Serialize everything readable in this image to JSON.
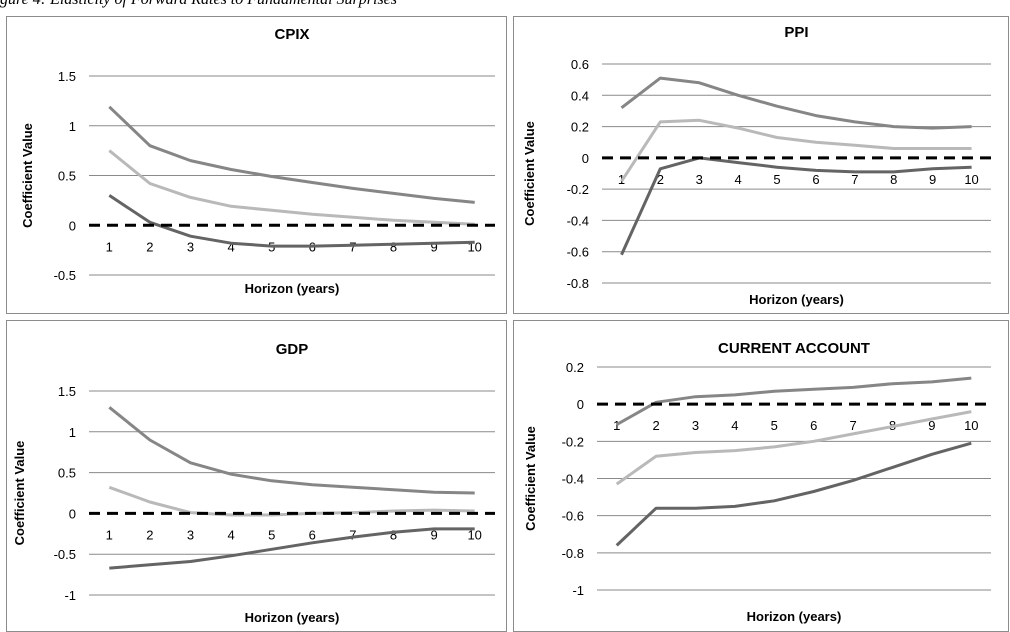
{
  "figure_caption": "gure 4: Elasticity of Forward Rates to Fundamental Surprises",
  "colors": {
    "upper": "#868686",
    "mid": "#b9b9b9",
    "lower": "#646464",
    "zero_line": "#000000"
  },
  "chart_data": [
    {
      "type": "line",
      "title": "CPIX",
      "xlabel": "Horizon (years)",
      "ylabel": "Coefficient Value",
      "x": [
        1,
        2,
        3,
        4,
        5,
        6,
        7,
        8,
        9,
        10
      ],
      "ylim": [
        -0.5,
        1.5
      ],
      "yticks": [
        -0.5,
        0,
        0.5,
        1,
        1.5
      ],
      "ytick_labels": [
        "-0.5",
        "0",
        "0.5",
        "1",
        "1.5"
      ],
      "grid": true,
      "zero_line": "dashed",
      "series": [
        {
          "values": [
            1.19,
            0.8,
            0.65,
            0.56,
            0.49,
            0.43,
            0.37,
            0.32,
            0.27,
            0.23
          ]
        },
        {
          "values": [
            0.75,
            0.42,
            0.28,
            0.19,
            0.15,
            0.11,
            0.08,
            0.05,
            0.03,
            0.01
          ]
        },
        {
          "values": [
            0.3,
            0.03,
            -0.11,
            -0.18,
            -0.21,
            -0.21,
            -0.2,
            -0.19,
            -0.18,
            -0.17
          ]
        }
      ]
    },
    {
      "type": "line",
      "title": "PPI",
      "xlabel": "Horizon (years)",
      "ylabel": "Coefficient Value",
      "x": [
        1,
        2,
        3,
        4,
        5,
        6,
        7,
        8,
        9,
        10
      ],
      "ylim": [
        -0.8,
        0.6
      ],
      "yticks": [
        -0.8,
        -0.6,
        -0.4,
        -0.2,
        0,
        0.2,
        0.4,
        0.6
      ],
      "ytick_labels": [
        "-0.8",
        "-0.6",
        "-0.4",
        "-0.2",
        "0",
        "0.2",
        "0.4",
        "0.6"
      ],
      "grid": true,
      "zero_line": "dashed",
      "series": [
        {
          "values": [
            0.32,
            0.51,
            0.48,
            0.4,
            0.33,
            0.27,
            0.23,
            0.2,
            0.19,
            0.2
          ]
        },
        {
          "values": [
            -0.15,
            0.23,
            0.24,
            0.19,
            0.13,
            0.1,
            0.08,
            0.06,
            0.06,
            0.06
          ]
        },
        {
          "values": [
            -0.62,
            -0.07,
            0.0,
            -0.03,
            -0.06,
            -0.08,
            -0.09,
            -0.09,
            -0.07,
            -0.06
          ]
        }
      ]
    },
    {
      "type": "line",
      "title": "GDP",
      "xlabel": "Horizon (years)",
      "ylabel": "Coefficient Value",
      "x": [
        1,
        2,
        3,
        4,
        5,
        6,
        7,
        8,
        9,
        10
      ],
      "ylim": [
        -1,
        1.5
      ],
      "yticks": [
        -1,
        -0.5,
        0,
        0.5,
        1,
        1.5
      ],
      "ytick_labels": [
        "-1",
        "-0.5",
        "0",
        "0.5",
        "1",
        "1.5"
      ],
      "grid": true,
      "zero_line": "dashed",
      "series": [
        {
          "values": [
            1.3,
            0.9,
            0.62,
            0.48,
            0.4,
            0.35,
            0.32,
            0.29,
            0.26,
            0.25
          ]
        },
        {
          "values": [
            0.32,
            0.14,
            0.01,
            -0.02,
            -0.02,
            0.0,
            0.01,
            0.03,
            0.04,
            0.03
          ]
        },
        {
          "values": [
            -0.67,
            -0.63,
            -0.59,
            -0.52,
            -0.44,
            -0.36,
            -0.29,
            -0.23,
            -0.19,
            -0.19
          ]
        }
      ]
    },
    {
      "type": "line",
      "title": "CURRENT ACCOUNT",
      "xlabel": "Horizon (years)",
      "ylabel": "Coefficient Value",
      "x": [
        1,
        2,
        3,
        4,
        5,
        6,
        7,
        8,
        9,
        10
      ],
      "ylim": [
        -1,
        0.2
      ],
      "yticks": [
        -1,
        -0.8,
        -0.6,
        -0.4,
        -0.2,
        0,
        0.2
      ],
      "ytick_labels": [
        "-1",
        "-0.8",
        "-0.6",
        "-0.4",
        "-0.2",
        "0",
        "0.2"
      ],
      "grid": true,
      "zero_line": "dashed",
      "series": [
        {
          "values": [
            -0.11,
            0.01,
            0.04,
            0.05,
            0.07,
            0.08,
            0.09,
            0.11,
            0.12,
            0.14
          ]
        },
        {
          "values": [
            -0.43,
            -0.28,
            -0.26,
            -0.25,
            -0.23,
            -0.2,
            -0.16,
            -0.12,
            -0.08,
            -0.04
          ]
        },
        {
          "values": [
            -0.76,
            -0.56,
            -0.56,
            -0.55,
            -0.52,
            -0.47,
            -0.41,
            -0.34,
            -0.27,
            -0.21
          ]
        }
      ]
    }
  ]
}
